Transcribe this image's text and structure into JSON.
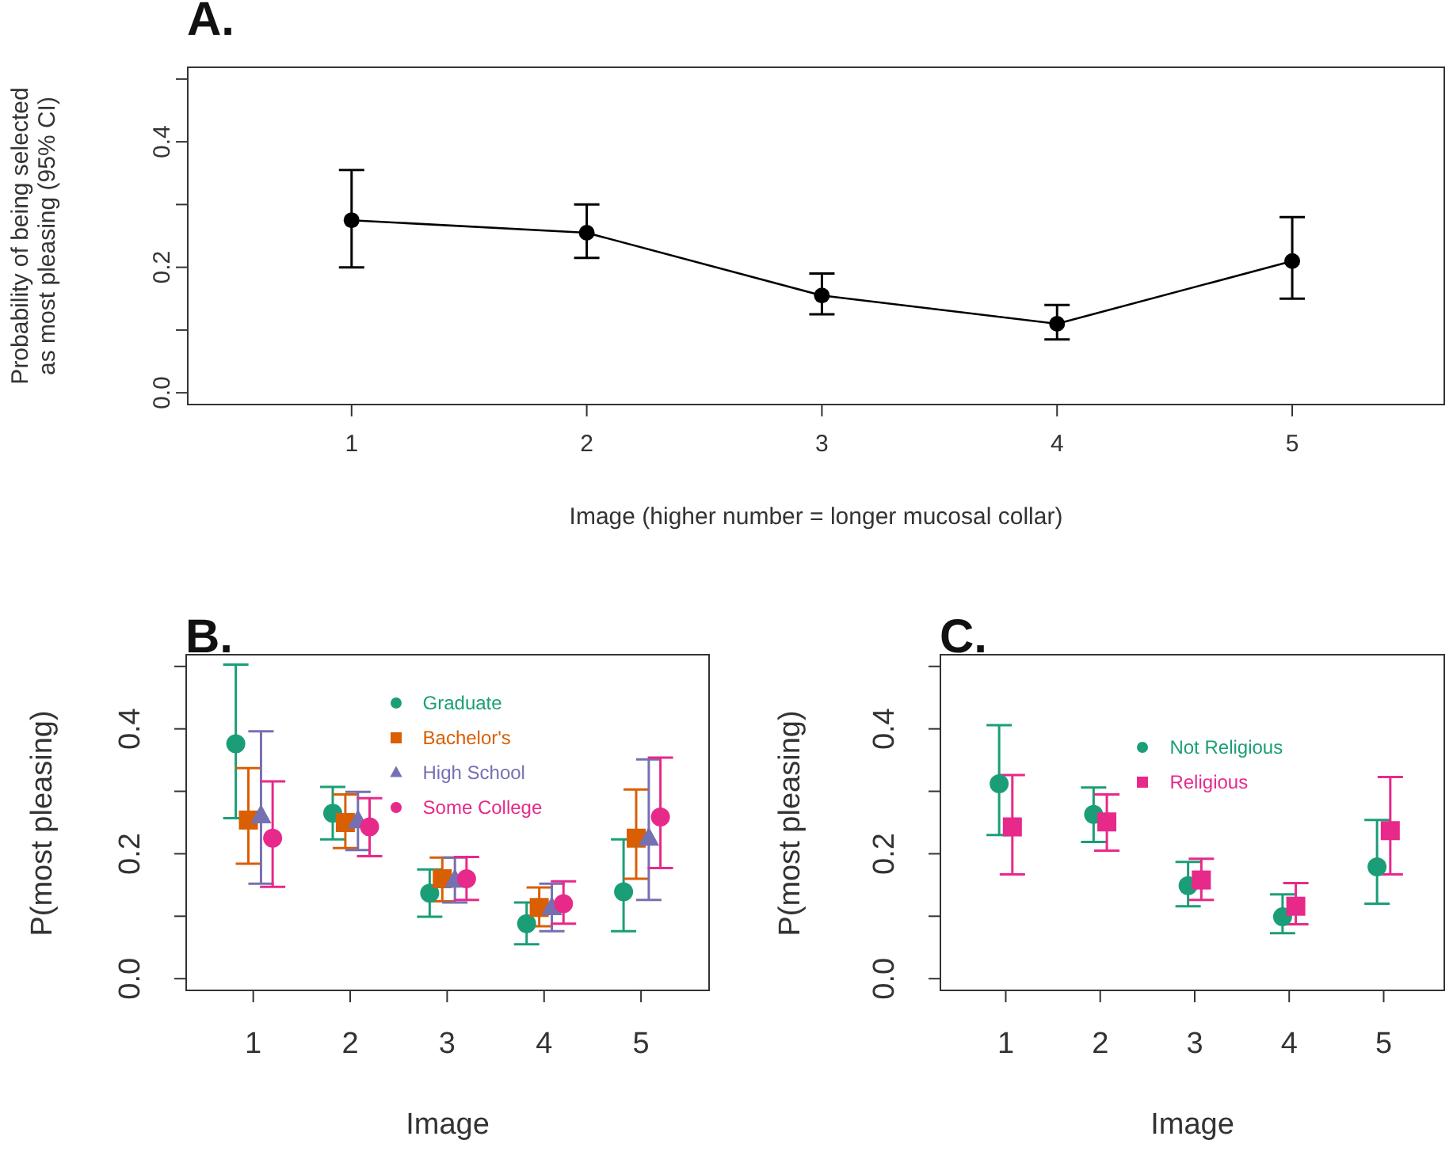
{
  "chart_data": [
    {
      "type": "line",
      "title": "A.",
      "xlabel": "Image (higher number = longer mucosal collar)",
      "ylabel": "Probability of being selected\nas most pleasing (95% CI)",
      "xlim": [
        0.3,
        5.65
      ],
      "xticks": [
        1,
        2,
        3,
        4,
        5
      ],
      "ylim": [
        -0.02,
        0.52
      ],
      "yticks": [
        {
          "value": 0,
          "label": "0.0"
        },
        {
          "value": 0.1,
          "label": null
        },
        {
          "value": 0.2,
          "label": "0.2"
        },
        {
          "value": 0.3,
          "label": null
        },
        {
          "value": 0.4,
          "label": "0.4"
        },
        {
          "value": 0.5,
          "label": null
        }
      ],
      "grid": false,
      "legend": false,
      "marker": "circle",
      "series": [
        {
          "color": "#000000",
          "x": [
            1,
            2,
            3,
            4,
            5
          ],
          "values": [
            0.275,
            0.255,
            0.155,
            0.11,
            0.21
          ],
          "errors": [
            [
              0.2,
              0.355
            ],
            [
              0.215,
              0.3
            ],
            [
              0.125,
              0.19
            ],
            [
              0.085,
              0.14
            ],
            [
              0.15,
              0.28
            ]
          ]
        }
      ]
    },
    {
      "type": "scatter",
      "title": "B.",
      "xlabel": "Image",
      "ylabel": "P(most pleasing)",
      "xlim": [
        0.3,
        5.71
      ],
      "xticks": [
        1,
        2,
        3,
        4,
        5
      ],
      "ylim": [
        -0.02,
        0.52
      ],
      "yticks": [
        {
          "value": 0,
          "label": "0.0"
        },
        {
          "value": 0.1,
          "label": null
        },
        {
          "value": 0.2,
          "label": "0.2"
        },
        {
          "value": 0.3,
          "label": null
        },
        {
          "value": 0.4,
          "label": "0.4"
        },
        {
          "value": 0.5,
          "label": null
        }
      ],
      "grid": false,
      "legend": "top",
      "series": [
        {
          "name": "Graduate",
          "color": "#1b9e77",
          "marker": "circle",
          "x": [
            0.82,
            1.82,
            2.82,
            3.82,
            4.82
          ],
          "values": [
            0.376,
            0.265,
            0.137,
            0.088,
            0.139
          ],
          "errors": [
            [
              0.257,
              0.503
            ],
            [
              0.223,
              0.307
            ],
            [
              0.099,
              0.175
            ],
            [
              0.055,
              0.122
            ],
            [
              0.076,
              0.223
            ]
          ]
        },
        {
          "name": "Bachelor's",
          "color": "#d95f02",
          "marker": "square",
          "x": [
            0.95,
            1.95,
            2.95,
            3.95,
            4.95
          ],
          "values": [
            0.254,
            0.25,
            0.16,
            0.114,
            0.225
          ],
          "errors": [
            [
              0.184,
              0.337
            ],
            [
              0.209,
              0.295
            ],
            [
              0.124,
              0.194
            ],
            [
              0.084,
              0.146
            ],
            [
              0.16,
              0.303
            ]
          ]
        },
        {
          "name": "High School",
          "color": "#7570b3",
          "marker": "triangle",
          "x": [
            1.08,
            2.08,
            3.08,
            4.08,
            5.08
          ],
          "values": [
            0.261,
            0.253,
            0.158,
            0.114,
            0.225
          ],
          "errors": [
            [
              0.152,
              0.396
            ],
            [
              0.206,
              0.299
            ],
            [
              0.122,
              0.194
            ],
            [
              0.076,
              0.152
            ],
            [
              0.126,
              0.351
            ]
          ]
        },
        {
          "name": "Some College",
          "color": "#e7298a",
          "marker": "circle",
          "x": [
            1.2,
            2.2,
            3.2,
            4.2,
            5.2
          ],
          "values": [
            0.225,
            0.243,
            0.16,
            0.12,
            0.259
          ],
          "errors": [
            [
              0.147,
              0.316
            ],
            [
              0.196,
              0.289
            ],
            [
              0.126,
              0.195
            ],
            [
              0.088,
              0.156
            ],
            [
              0.177,
              0.354
            ]
          ]
        }
      ]
    },
    {
      "type": "scatter",
      "title": "C.",
      "xlabel": "Image",
      "ylabel": "P(most pleasing)",
      "xlim": [
        0.3,
        5.65
      ],
      "xticks": [
        1,
        2,
        3,
        4,
        5
      ],
      "ylim": [
        -0.02,
        0.52
      ],
      "yticks": [
        {
          "value": 0,
          "label": "0.0"
        },
        {
          "value": 0.1,
          "label": null
        },
        {
          "value": 0.2,
          "label": "0.2"
        },
        {
          "value": 0.3,
          "label": null
        },
        {
          "value": 0.4,
          "label": "0.4"
        },
        {
          "value": 0.5,
          "label": null
        }
      ],
      "grid": false,
      "legend": "top",
      "series": [
        {
          "name": "Not Religious",
          "color": "#1b9e77",
          "marker": "circle",
          "x": [
            0.93,
            1.93,
            2.93,
            3.93,
            4.93
          ],
          "values": [
            0.312,
            0.263,
            0.149,
            0.099,
            0.179
          ],
          "errors": [
            [
              0.23,
              0.406
            ],
            [
              0.219,
              0.306
            ],
            [
              0.116,
              0.187
            ],
            [
              0.073,
              0.135
            ],
            [
              0.12,
              0.254
            ]
          ]
        },
        {
          "name": "Religious",
          "color": "#e7298a",
          "marker": "square",
          "x": [
            1.07,
            2.07,
            3.07,
            4.07,
            5.07
          ],
          "values": [
            0.243,
            0.251,
            0.158,
            0.116,
            0.237
          ],
          "errors": [
            [
              0.167,
              0.326
            ],
            [
              0.205,
              0.295
            ],
            [
              0.126,
              0.192
            ],
            [
              0.087,
              0.153
            ],
            [
              0.167,
              0.323
            ]
          ]
        }
      ]
    }
  ]
}
